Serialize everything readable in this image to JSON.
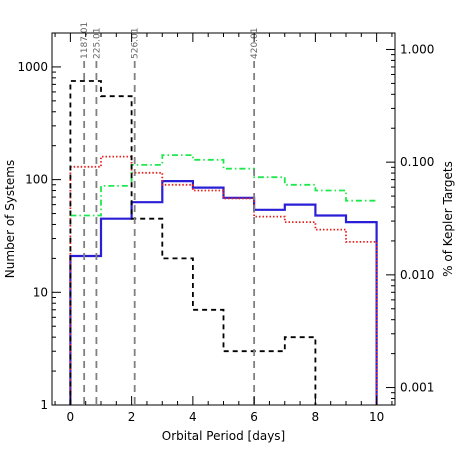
{
  "chart_data": {
    "type": "line",
    "xlabel": "Orbital Period [days]",
    "ylabel": "Number of Systems",
    "ylabel_right": "% of Kepler Targets",
    "xlim": [
      -0.6,
      10.6
    ],
    "ylim": [
      1,
      2000
    ],
    "yscale": "log",
    "ylim_right": [
      0.0007,
      1.4
    ],
    "x_ticks": [
      0,
      2,
      4,
      6,
      8,
      10
    ],
    "x_tick_labels": [
      "0",
      "2",
      "4",
      "6",
      "8",
      "10"
    ],
    "y_ticks": [
      1,
      10,
      100,
      1000
    ],
    "y_tick_labels": [
      "1",
      "10",
      "100",
      "1000"
    ],
    "y_right_ticks": [
      0.001,
      0.01,
      0.1,
      1
    ],
    "y_right_tick_labels": [
      "0.001",
      "0.010",
      "0.100",
      "1.000"
    ],
    "bin_edges": [
      0,
      1,
      2,
      3,
      4,
      5,
      6,
      7,
      8,
      9,
      10
    ],
    "series": [
      {
        "style": "solid",
        "color": "#2a1fd6",
        "values": [
          21,
          45,
          63,
          97,
          85,
          69,
          54,
          60,
          48,
          42
        ],
        "start_x": 0,
        "start_value": 0.7
      },
      {
        "style": "dotted",
        "color": "#e8201c",
        "values": [
          130,
          160,
          115,
          90,
          80,
          68,
          47,
          42,
          36,
          28
        ],
        "start_x": 0,
        "start_value": 0.7
      },
      {
        "style": "dashdot",
        "color": "#1ee84c",
        "values": [
          48,
          88,
          135,
          165,
          150,
          125,
          105,
          90,
          80,
          65
        ],
        "start_x": 0,
        "start_value": 48
      },
      {
        "style": "dashed",
        "color": "#000000",
        "edges": [
          0,
          0.5,
          1,
          2,
          3,
          4,
          5,
          6,
          7,
          8,
          9
        ],
        "values": [
          750,
          750,
          550,
          45,
          20,
          7,
          3,
          3,
          4,
          0.8
        ],
        "start_x": 0,
        "start_value": 0.7
      }
    ],
    "vertical_lines": [
      {
        "x": 0.45,
        "label": "1187.01"
      },
      {
        "x": 0.85,
        "label": "225.01"
      },
      {
        "x": 2.1,
        "label": "526.01"
      },
      {
        "x": 6.0,
        "label": "420.01"
      }
    ]
  }
}
